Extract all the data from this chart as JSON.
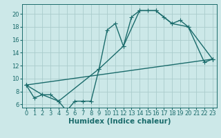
{
  "xlabel": "Humidex (Indice chaleur)",
  "ylabel": "",
  "background_color": "#cce8e8",
  "grid_color": "#aacccc",
  "line_color": "#1a6b6b",
  "xlim": [
    -0.5,
    23.5
  ],
  "ylim": [
    5.5,
    21.5
  ],
  "yticks": [
    6,
    8,
    10,
    12,
    14,
    16,
    18,
    20
  ],
  "xticks": [
    0,
    1,
    2,
    3,
    4,
    5,
    6,
    7,
    8,
    9,
    10,
    11,
    12,
    13,
    14,
    15,
    16,
    17,
    18,
    19,
    20,
    21,
    22,
    23
  ],
  "line1_x": [
    0,
    1,
    2,
    3,
    4,
    5,
    6,
    7,
    8,
    9,
    10,
    11,
    12,
    13,
    14,
    15,
    16,
    17,
    18,
    19,
    20,
    22,
    23
  ],
  "line1_y": [
    9.0,
    7.0,
    7.5,
    7.5,
    6.5,
    5.0,
    6.5,
    6.5,
    6.5,
    11.5,
    17.5,
    18.5,
    15.0,
    19.5,
    20.5,
    20.5,
    20.5,
    19.5,
    18.5,
    19.0,
    18.0,
    12.5,
    13.0
  ],
  "line2_x": [
    0,
    2,
    4,
    9,
    12,
    14,
    16,
    18,
    20,
    23
  ],
  "line2_y": [
    9.0,
    7.5,
    6.5,
    11.5,
    15.0,
    20.5,
    20.5,
    18.5,
    18.0,
    13.0
  ],
  "line3_x": [
    0,
    23
  ],
  "line3_y": [
    9.0,
    13.0
  ],
  "markersize": 2.5,
  "linewidth": 1.0,
  "xlabel_fontsize": 7.5,
  "tick_fontsize": 6.0
}
